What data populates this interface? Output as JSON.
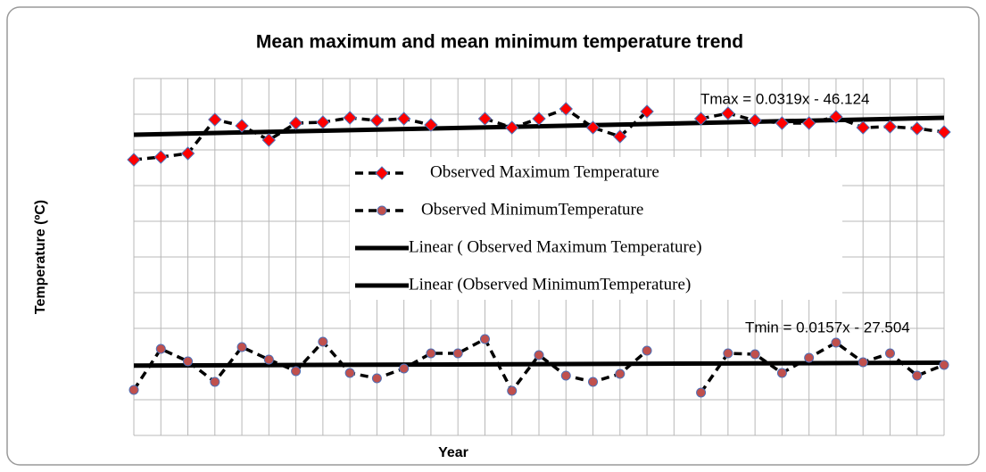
{
  "chart_data": {
    "type": "line",
    "title": "Mean maximum and mean minimum  temperature trend",
    "x_label": "Year",
    "y_label": "Temperature (ºC)",
    "categories": [
      null,
      null,
      null,
      null,
      null,
      null,
      null,
      null,
      null,
      null,
      null,
      null,
      null,
      null,
      null,
      null,
      null,
      null,
      null,
      null,
      null,
      null,
      null,
      null,
      null,
      null,
      null,
      null,
      null,
      null,
      null
    ],
    "series": [
      {
        "name": "Observed Maximum Temperature",
        "color": "#ff0000",
        "marker": "diamond",
        "values": [
          15.45,
          15.6,
          15.8,
          17.7,
          17.35,
          16.55,
          17.5,
          17.55,
          17.8,
          17.65,
          17.75,
          17.4,
          null,
          17.75,
          17.25,
          17.75,
          18.3,
          17.25,
          16.75,
          18.15,
          null,
          17.75,
          18.05,
          17.65,
          17.5,
          17.5,
          17.85,
          17.25,
          17.3,
          17.2,
          17.0
        ]
      },
      {
        "name": "Observed MinimumTemperature",
        "color": "#c0504d",
        "marker": "circle",
        "values": [
          2.55,
          4.85,
          4.15,
          3.0,
          4.95,
          4.25,
          3.6,
          5.25,
          3.5,
          3.2,
          3.75,
          4.6,
          4.6,
          5.4,
          2.5,
          4.5,
          3.35,
          3.0,
          3.45,
          4.75,
          null,
          2.4,
          4.6,
          4.55,
          3.5,
          4.35,
          5.2,
          4.1,
          4.6,
          3.35,
          3.95
        ]
      }
    ],
    "trendlines": [
      {
        "name": "Linear ( Observed Maximum Temperature)",
        "equation": "Tmax = 0.0319x - 46.124",
        "color": "#000000"
      },
      {
        "name": "Linear (Observed MinimumTemperature)",
        "equation": "Tmin = 0.0157x - 27.504",
        "color": "#000000"
      }
    ],
    "ylim": [
      0,
      20
    ],
    "yticks": [
      0,
      2,
      4,
      6,
      8,
      10,
      12,
      14,
      16,
      18,
      20
    ],
    "grid": true
  }
}
